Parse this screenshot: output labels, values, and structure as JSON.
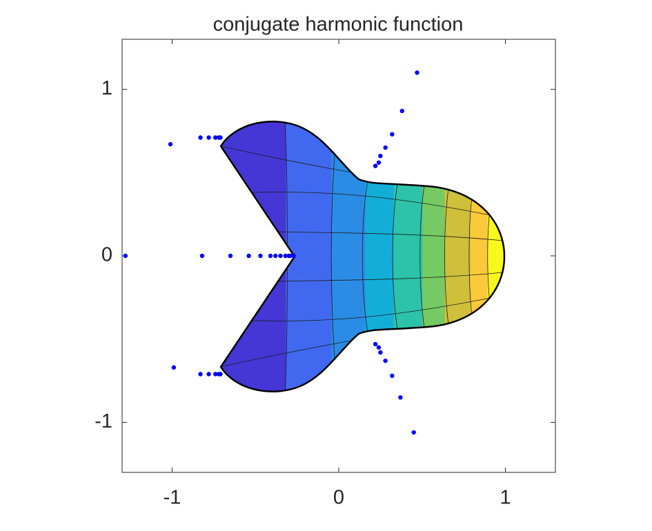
{
  "chart_data": {
    "type": "scatter",
    "title": "conjugate harmonic function",
    "xlim": [
      -1.3,
      1.3
    ],
    "ylim": [
      -1.3,
      1.3
    ],
    "xticks": [
      -1,
      0,
      1
    ],
    "yticks": [
      -1,
      0,
      1
    ],
    "series": [
      {
        "color": "#0000ff",
        "x": [
          -1.01,
          -0.83,
          -0.78,
          -0.74,
          -0.72,
          -0.71,
          -1.28,
          -0.82,
          -0.65,
          -0.54,
          -0.47,
          -0.41,
          -0.38,
          -0.35,
          -0.32,
          -0.3,
          -0.29,
          -0.27,
          -0.99,
          -0.83,
          -0.78,
          -0.74,
          -0.72,
          -0.71,
          0.47,
          0.38,
          0.32,
          0.28,
          0.25,
          0.24,
          0.22,
          0.45,
          0.37,
          0.32,
          0.28,
          0.25,
          0.24,
          0.22
        ],
        "y": [
          0.67,
          0.71,
          0.71,
          0.71,
          0.71,
          0.71,
          0,
          0,
          0,
          0,
          0,
          0,
          0,
          0,
          0,
          0,
          0,
          0,
          -0.67,
          -0.71,
          -0.71,
          -0.71,
          -0.71,
          -0.71,
          1.1,
          0.87,
          0.73,
          0.65,
          0.6,
          0.56,
          0.54,
          -1.06,
          -0.85,
          -0.72,
          -0.63,
          -0.58,
          -0.55,
          -0.53
        ]
      }
    ]
  }
}
